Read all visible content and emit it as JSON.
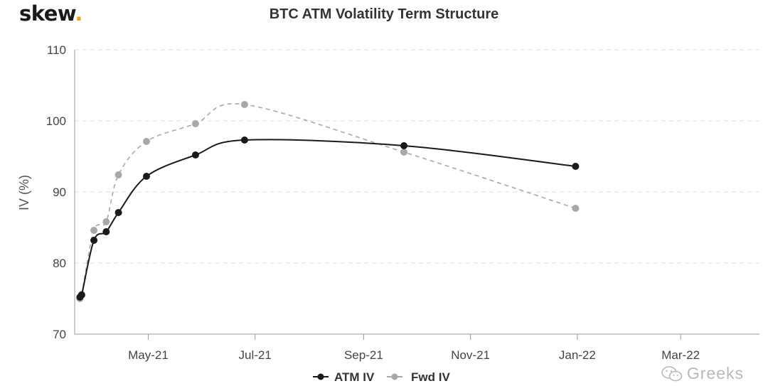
{
  "brand": {
    "name": "skew",
    "dot": "."
  },
  "watermark": {
    "text": "Greeks",
    "icon": "wechat-icon"
  },
  "colors": {
    "atm": "#1a1a1a",
    "fwd": "#a8a8a8",
    "grid": "#dddddd",
    "axis": "#999999",
    "brand_dot": "#e9a320"
  },
  "chart_data": {
    "type": "line",
    "title": "BTC ATM Volatility Term Structure",
    "xlabel": "",
    "ylabel": "IV (%)",
    "ylim": [
      70,
      110
    ],
    "yticks": [
      70,
      80,
      90,
      100,
      110
    ],
    "xlim": [
      "2021-03-20",
      "2022-04-15"
    ],
    "xticks": [
      {
        "date": "2021-05-01",
        "label": "May-21"
      },
      {
        "date": "2021-07-01",
        "label": "Jul-21"
      },
      {
        "date": "2021-09-01",
        "label": "Sep-21"
      },
      {
        "date": "2021-11-01",
        "label": "Nov-21"
      },
      {
        "date": "2022-01-01",
        "label": "Jan-22"
      },
      {
        "date": "2022-03-01",
        "label": "Mar-22"
      }
    ],
    "grid": true,
    "legend": "bottom-center",
    "series": [
      {
        "name": "ATM IV",
        "style": "solid",
        "x": [
          "2021-03-23",
          "2021-03-24",
          "2021-03-31",
          "2021-04-07",
          "2021-04-14",
          "2021-04-30",
          "2021-05-28",
          "2021-06-25",
          "2021-09-24",
          "2021-12-31"
        ],
        "values": [
          75.2,
          75.5,
          83.2,
          84.4,
          87.1,
          92.2,
          95.2,
          97.3,
          96.5,
          93.6
        ]
      },
      {
        "name": "Fwd IV",
        "style": "dashed",
        "x": [
          "2021-03-23",
          "2021-03-24",
          "2021-03-31",
          "2021-04-07",
          "2021-04-14",
          "2021-04-30",
          "2021-05-28",
          "2021-06-25",
          "2021-09-24",
          "2021-12-31"
        ],
        "values": [
          75.0,
          75.6,
          84.6,
          85.8,
          92.4,
          97.1,
          99.6,
          102.3,
          95.6,
          87.7
        ]
      }
    ]
  }
}
